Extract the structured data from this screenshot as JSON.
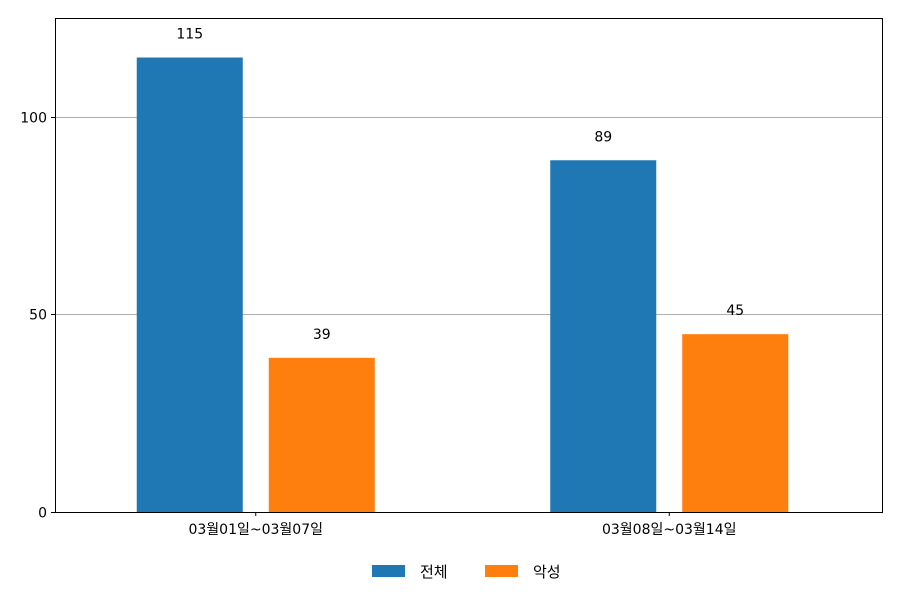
{
  "chart_data": {
    "type": "bar",
    "categories": [
      "03월01일~03월07일",
      "03월08일~03월14일"
    ],
    "series": [
      {
        "name": "전체",
        "values": [
          115,
          89
        ],
        "color": "#1f77b4"
      },
      {
        "name": "악성",
        "values": [
          39,
          45
        ],
        "color": "#ff7f0e"
      }
    ],
    "ylim": [
      0,
      125
    ],
    "yticks": [
      0,
      50,
      100
    ],
    "grid": "horizontal",
    "legend": "bottom-center",
    "data_labels": true
  }
}
